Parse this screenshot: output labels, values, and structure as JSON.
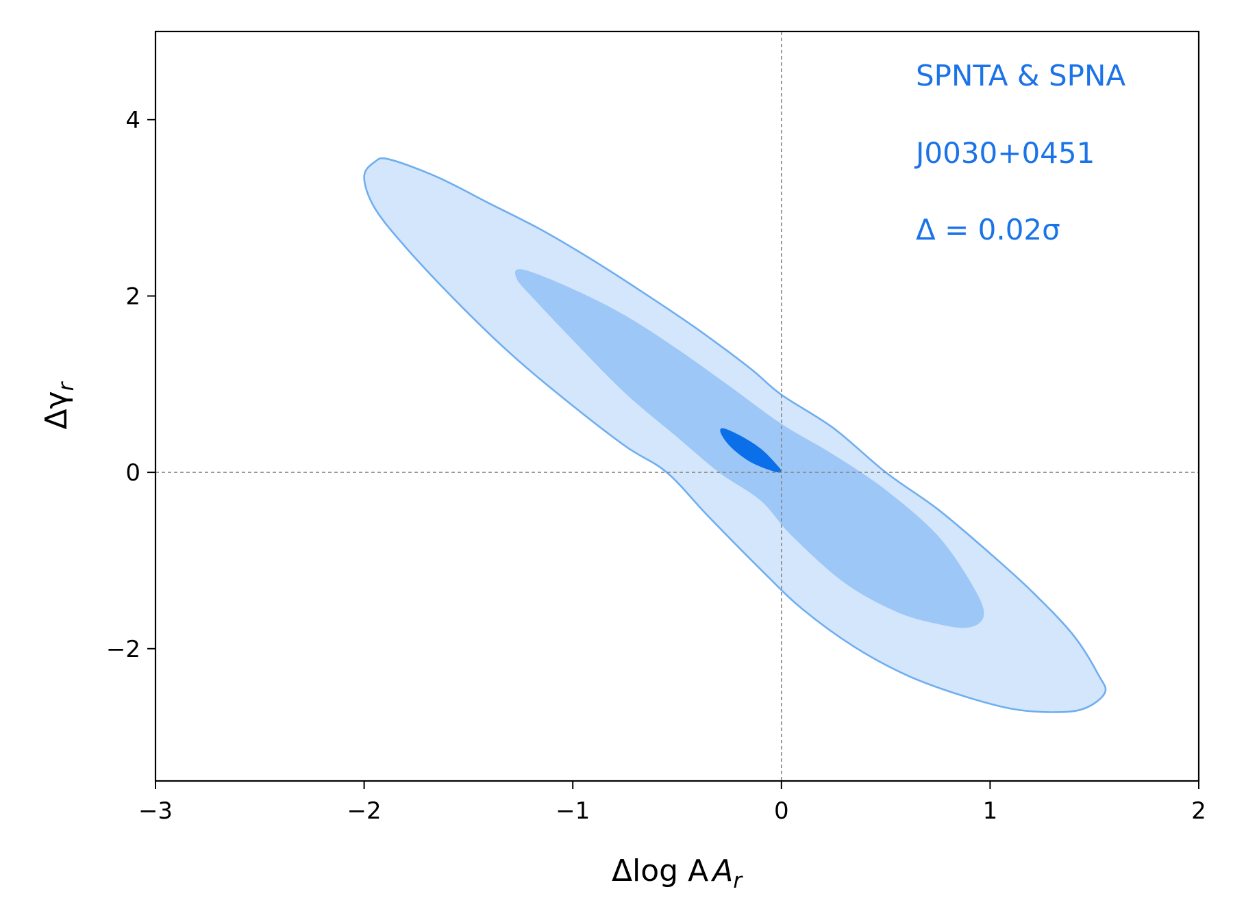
{
  "chart_data": {
    "type": "contour",
    "xlabel": "Δlog A",
    "xlabel_sub": "r",
    "ylabel": "Δγ",
    "ylabel_sub": "r",
    "xlim": [
      -3,
      2
    ],
    "ylim": [
      -3.5,
      5
    ],
    "xticks": [
      -3,
      -2,
      -1,
      0,
      1,
      2
    ],
    "xtick_labels": [
      "−3",
      "−2",
      "−1",
      "0",
      "1",
      "2"
    ],
    "yticks": [
      -2,
      0,
      2,
      4
    ],
    "ytick_labels": [
      "−2",
      "0",
      "2",
      "4"
    ],
    "grid": false,
    "reference_lines": {
      "x": 0,
      "y": 0
    },
    "annotations": [
      "SPNTA & SPNA",
      "J0030+0451",
      "Δ = 0.02σ"
    ],
    "colors": {
      "outer_fill": "#d4e6fb",
      "outer_line": "#6eaef0",
      "middle_fill": "#9dc7f7",
      "inner_fill": "#0a6fe8",
      "text": "#1a73e8",
      "refline": "#888888"
    },
    "contours": [
      {
        "level": "outer",
        "points": [
          [
            -1.88,
            3.55
          ],
          [
            -1.65,
            3.35
          ],
          [
            -1.4,
            3.05
          ],
          [
            -1.15,
            2.75
          ],
          [
            -0.9,
            2.4
          ],
          [
            -0.65,
            2.02
          ],
          [
            -0.4,
            1.62
          ],
          [
            -0.15,
            1.18
          ],
          [
            0.0,
            0.88
          ],
          [
            0.25,
            0.5
          ],
          [
            0.5,
            0.0
          ],
          [
            0.75,
            -0.42
          ],
          [
            1.0,
            -0.92
          ],
          [
            1.2,
            -1.35
          ],
          [
            1.4,
            -1.85
          ],
          [
            1.52,
            -2.3
          ],
          [
            1.55,
            -2.5
          ],
          [
            1.45,
            -2.68
          ],
          [
            1.3,
            -2.72
          ],
          [
            1.1,
            -2.68
          ],
          [
            0.85,
            -2.52
          ],
          [
            0.6,
            -2.3
          ],
          [
            0.35,
            -1.98
          ],
          [
            0.1,
            -1.55
          ],
          [
            -0.1,
            -1.1
          ],
          [
            -0.35,
            -0.5
          ],
          [
            -0.55,
            0.0
          ],
          [
            -0.75,
            0.3
          ],
          [
            -1.05,
            0.85
          ],
          [
            -1.3,
            1.35
          ],
          [
            -1.55,
            1.92
          ],
          [
            -1.8,
            2.55
          ],
          [
            -1.95,
            3.0
          ],
          [
            -2.0,
            3.35
          ],
          [
            -1.95,
            3.52
          ]
        ]
      },
      {
        "level": "middle",
        "points": [
          [
            -1.24,
            2.3
          ],
          [
            -1.0,
            2.08
          ],
          [
            -0.75,
            1.78
          ],
          [
            -0.5,
            1.4
          ],
          [
            -0.25,
            0.98
          ],
          [
            0.0,
            0.55
          ],
          [
            0.25,
            0.2
          ],
          [
            0.5,
            -0.2
          ],
          [
            0.75,
            -0.72
          ],
          [
            0.92,
            -1.3
          ],
          [
            0.97,
            -1.62
          ],
          [
            0.9,
            -1.76
          ],
          [
            0.75,
            -1.72
          ],
          [
            0.55,
            -1.58
          ],
          [
            0.3,
            -1.25
          ],
          [
            0.05,
            -0.72
          ],
          [
            -0.1,
            -0.32
          ],
          [
            -0.3,
            0.0
          ],
          [
            -0.5,
            0.4
          ],
          [
            -0.75,
            0.9
          ],
          [
            -1.0,
            1.5
          ],
          [
            -1.18,
            1.95
          ],
          [
            -1.27,
            2.2
          ]
        ]
      },
      {
        "level": "inner",
        "points": [
          [
            -0.28,
            0.5
          ],
          [
            -0.2,
            0.42
          ],
          [
            -0.1,
            0.27
          ],
          [
            -0.02,
            0.08
          ],
          [
            0.0,
            0.0
          ],
          [
            -0.05,
            0.02
          ],
          [
            -0.15,
            0.12
          ],
          [
            -0.24,
            0.28
          ],
          [
            -0.29,
            0.44
          ]
        ]
      }
    ]
  }
}
